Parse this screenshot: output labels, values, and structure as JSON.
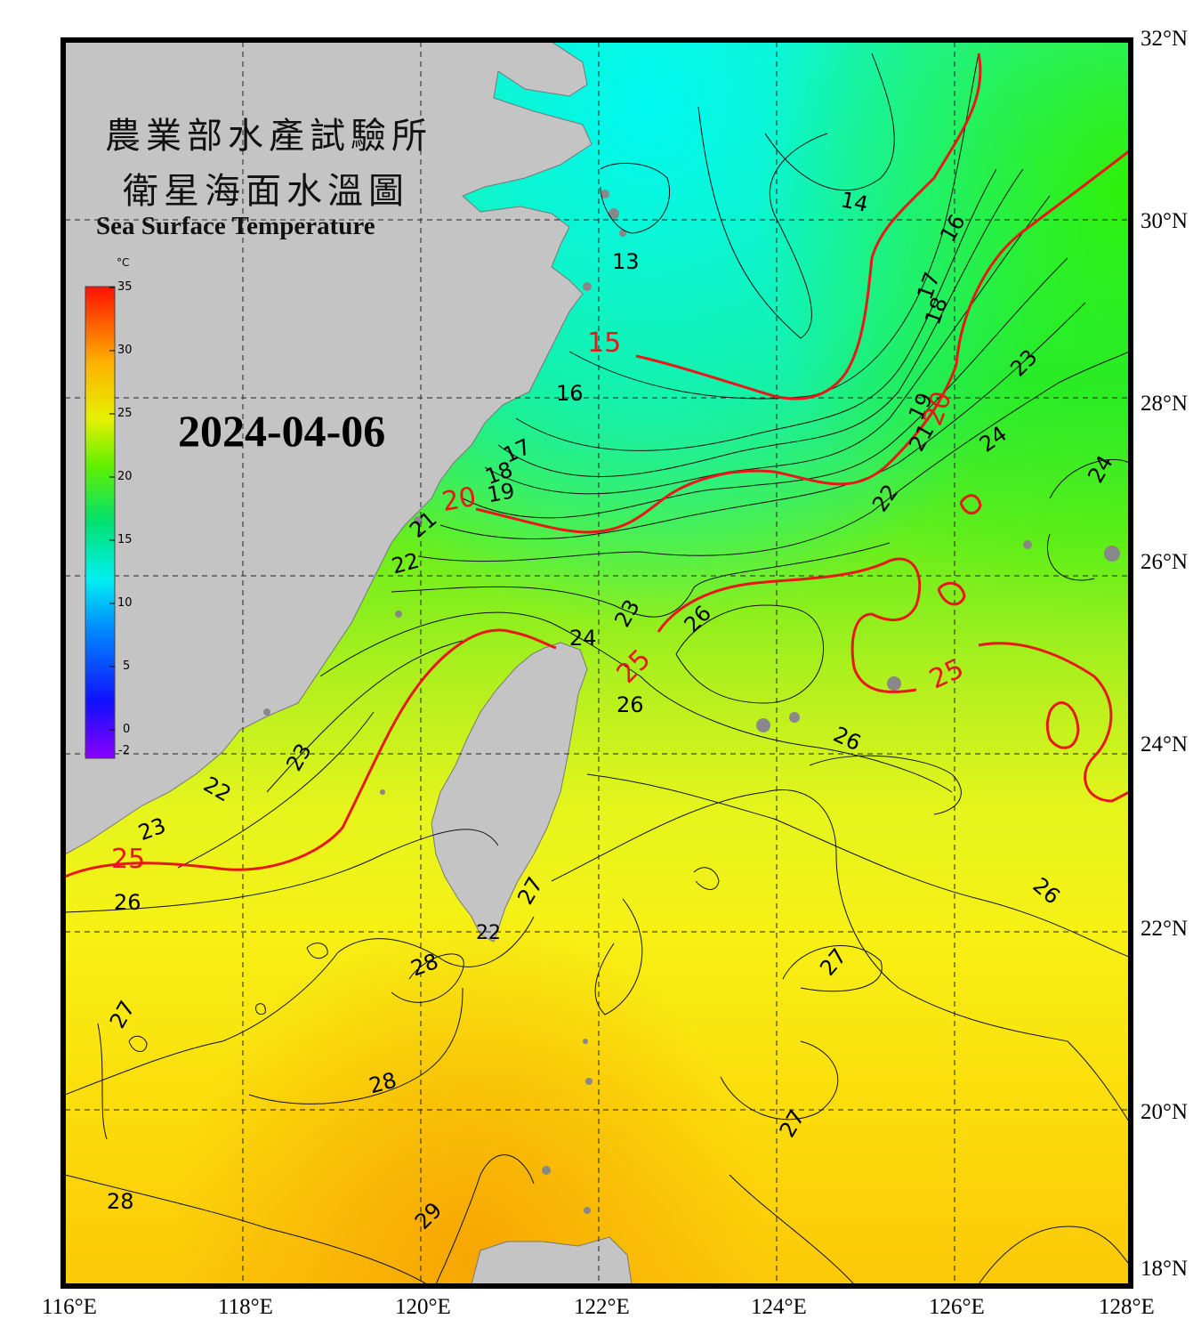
{
  "title": {
    "zh_line1": "農業部水產試驗所",
    "zh_line2": "衛星海面水溫圖",
    "en": "Sea Surface Temperature"
  },
  "date": "2024-04-06",
  "colorbar": {
    "unit": "°C",
    "labels": [
      "35",
      "30",
      "25",
      "20",
      "15",
      "10",
      "5",
      "0",
      "-2"
    ]
  },
  "axes": {
    "lon_labels": [
      "116°E",
      "118°E",
      "120°E",
      "122°E",
      "124°E",
      "126°E",
      "128°E"
    ],
    "lat_labels": [
      "32°N",
      "30°N",
      "28°N",
      "26°N",
      "24°N",
      "22°N",
      "20°N",
      "18°N"
    ]
  },
  "contours": {
    "black": [
      "14",
      "13",
      "16",
      "16",
      "17",
      "18",
      "17",
      "18",
      "19",
      "19",
      "21",
      "21",
      "22",
      "22",
      "23",
      "23",
      "24",
      "24",
      "23",
      "22",
      "23",
      "24",
      "26",
      "26",
      "26",
      "26",
      "26",
      "27",
      "27",
      "28",
      "28",
      "28",
      "29",
      "27",
      "27",
      "22",
      "23"
    ],
    "red": [
      "15",
      "20",
      "20",
      "25",
      "25",
      "25",
      "25"
    ]
  }
}
